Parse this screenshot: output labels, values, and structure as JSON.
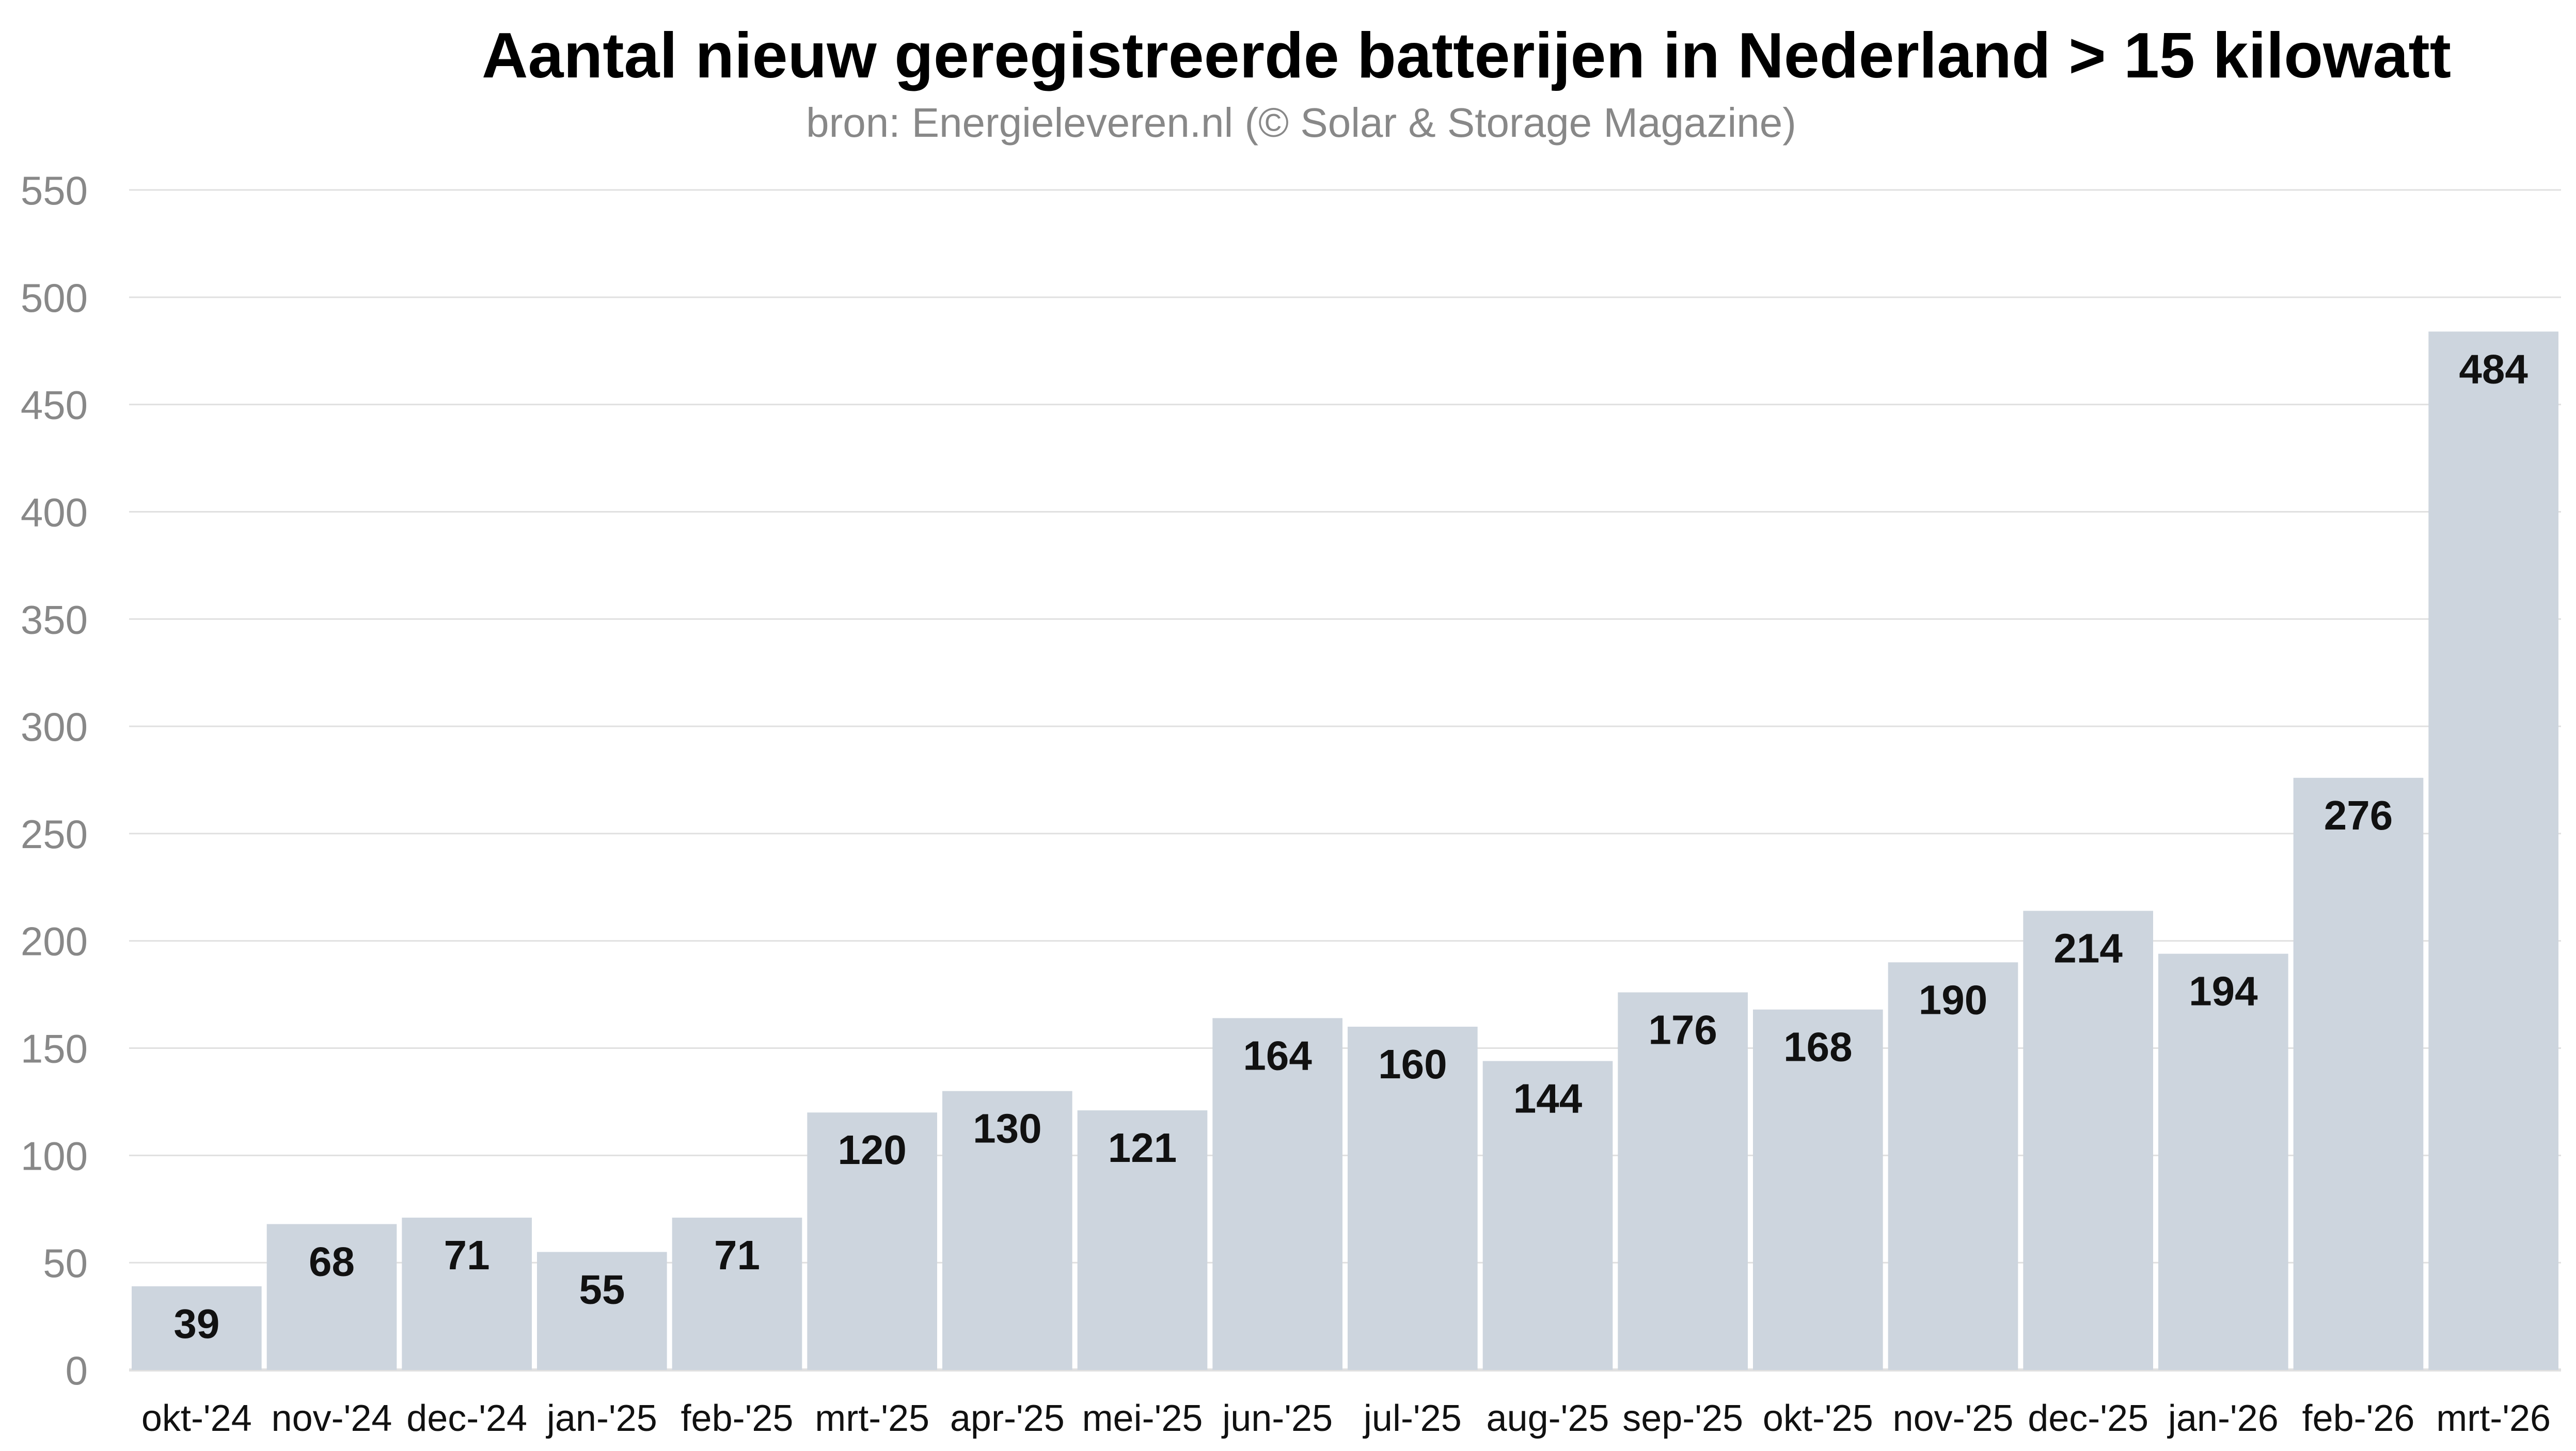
{
  "chart_data": {
    "type": "bar",
    "title": "Aantal nieuw geregistreerde batterijen in Nederland > 15 kilowatt",
    "subtitle": "bron: Energieleveren.nl (© Solar & Storage Magazine)",
    "xlabel": "",
    "ylabel": "",
    "ylim": [
      0,
      550
    ],
    "yticks": [
      0,
      50,
      100,
      150,
      200,
      250,
      300,
      350,
      400,
      450,
      500,
      550
    ],
    "grid": true,
    "categories": [
      "okt-'24",
      "nov-'24",
      "dec-'24",
      "jan-'25",
      "feb-'25",
      "mrt-'25",
      "apr-'25",
      "mei-'25",
      "jun-'25",
      "jul-'25",
      "aug-'25",
      "sep-'25",
      "okt-'25",
      "nov-'25",
      "dec-'25",
      "jan-'26",
      "feb-'26",
      "mrt-'26"
    ],
    "values": [
      39,
      68,
      71,
      55,
      71,
      120,
      130,
      121,
      164,
      160,
      144,
      176,
      168,
      190,
      214,
      194,
      276,
      484
    ],
    "colors": {
      "bar": "#cdd5de",
      "grid": "#e0e0e0",
      "axis_text": "#888888",
      "title": "#000000",
      "subtitle": "#888888"
    }
  }
}
